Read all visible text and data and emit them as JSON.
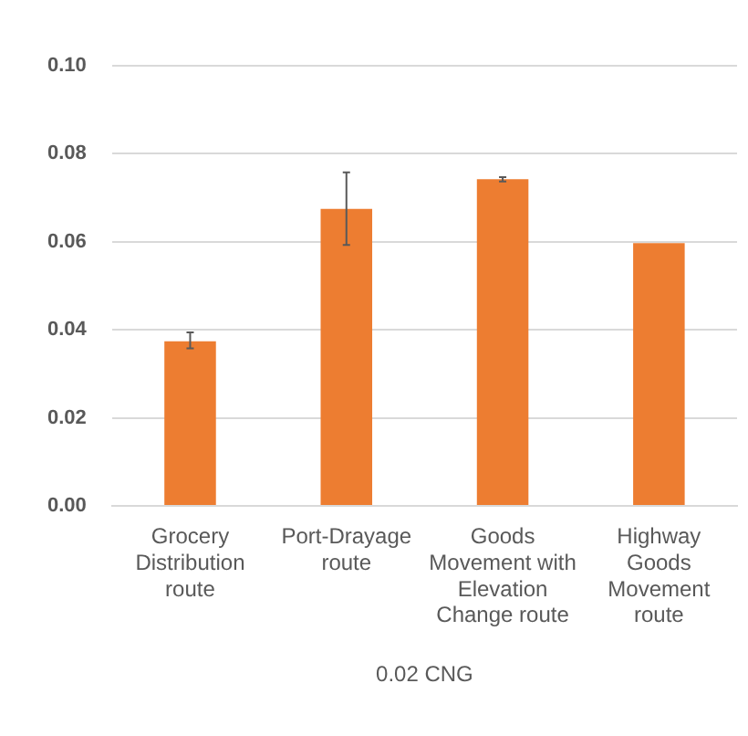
{
  "chart_data": {
    "type": "bar",
    "xlabel": "0.02 CNG",
    "categories": [
      "Grocery Distribution route",
      "Port-Drayage route",
      "Goods Movement with Elevation Change route",
      "Highway Goods Movement route"
    ],
    "values": [
      0.0374,
      0.0675,
      0.0742,
      0.0597
    ],
    "errors": [
      [
        0.0358,
        0.0394
      ],
      [
        0.0593,
        0.0758
      ],
      [
        0.0737,
        0.0747
      ],
      null
    ],
    "color": "#ed7d31",
    "ylim": [
      0,
      0.1
    ],
    "yticks": [
      {
        "value": 0,
        "label": "0.00"
      },
      {
        "value": 0.02,
        "label": "0.02"
      },
      {
        "value": 0.04,
        "label": "0.04"
      },
      {
        "value": 0.06,
        "label": "0.06"
      },
      {
        "value": 0.08,
        "label": "0.08"
      },
      {
        "value": 0.1,
        "label": "0.10"
      }
    ],
    "grid": "y",
    "legend": false
  }
}
